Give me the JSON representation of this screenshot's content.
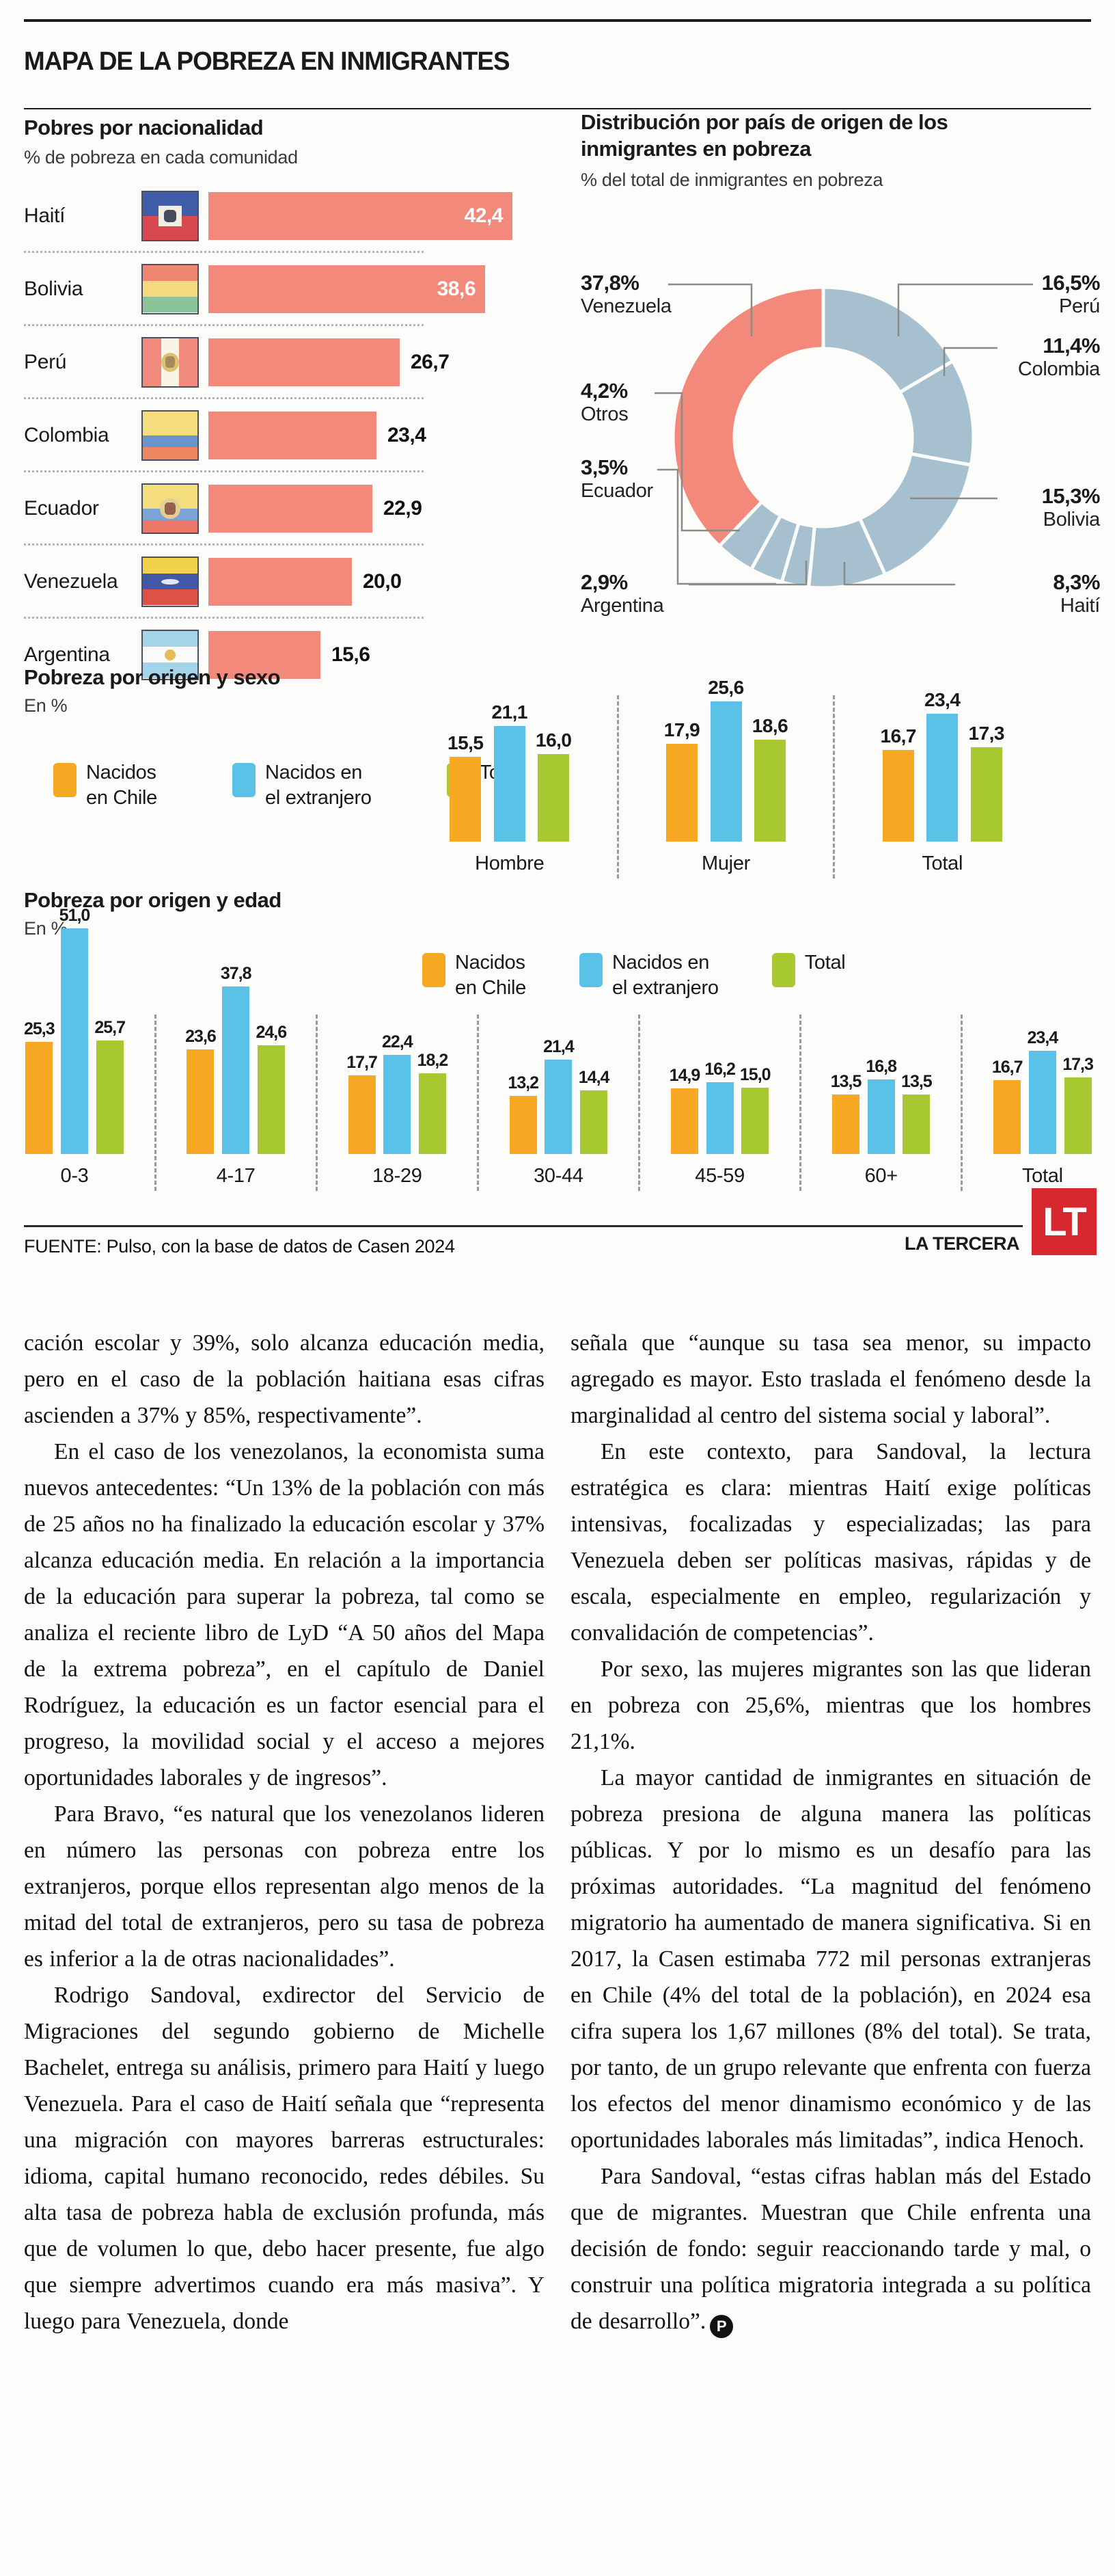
{
  "page": {
    "title_bar": "MAPA DE LA POBREZA EN INMIGRANTES"
  },
  "colors": {
    "coral": "#f2897b",
    "donut_base": "#a6c0d0",
    "born_chile": "#f7a823",
    "born_abroad": "#5bc2e7",
    "total_series": "#a8c832",
    "brand_red": "#d7282f"
  },
  "chart_data": [
    {
      "id": "nationality",
      "type": "bar",
      "orientation": "horizontal",
      "title": "Pobres por nacionalidad",
      "subtitle": "% de pobreza en cada comunidad",
      "bar_color": "#f2897b",
      "categories": [
        "Haití",
        "Bolivia",
        "Perú",
        "Colombia",
        "Ecuador",
        "Venezuela",
        "Argentina"
      ],
      "values": [
        42.4,
        38.6,
        26.7,
        23.4,
        22.9,
        20.0,
        15.6
      ],
      "value_labels": [
        "42,4",
        "38,6",
        "26,7",
        "23,4",
        "22,9",
        "20,0",
        "15,6"
      ],
      "label_inside": [
        true,
        true,
        false,
        false,
        false,
        false,
        false
      ],
      "flags": [
        {
          "name": "haiti",
          "dir": "col",
          "stripes": [
            [
              "#3f5da8",
              1
            ],
            [
              "#d8494f",
              1
            ]
          ],
          "emblem": {
            "w": 34,
            "h": 30,
            "bg": "#f2eee0",
            "dot": "#454d5c"
          }
        },
        {
          "name": "bolivia",
          "dir": "col",
          "stripes": [
            [
              "#ef8672",
              1
            ],
            [
              "#f4d97e",
              1
            ],
            [
              "#8cc49a",
              1
            ]
          ]
        },
        {
          "name": "peru",
          "dir": "row",
          "stripes": [
            [
              "#ef8a7c",
              1
            ],
            [
              "#faf4e6",
              1
            ],
            [
              "#ef8a7c",
              1
            ]
          ],
          "emblem": {
            "w": 26,
            "h": 28,
            "bg": "#dcc270",
            "dot": "#a8895a",
            "round": true
          }
        },
        {
          "name": "colombia",
          "dir": "col",
          "stripes": [
            [
              "#f5dd7d",
              2
            ],
            [
              "#6a94cc",
              1
            ],
            [
              "#ec8560",
              1
            ]
          ]
        },
        {
          "name": "ecuador",
          "dir": "col",
          "stripes": [
            [
              "#f5dd7d",
              2
            ],
            [
              "#7da3d4",
              1
            ],
            [
              "#ec7668",
              1
            ]
          ],
          "emblem": {
            "w": 30,
            "h": 30,
            "bg": "#e3cf96",
            "dot": "#97604e",
            "round": true
          }
        },
        {
          "name": "venezuela",
          "dir": "col",
          "stripes": [
            [
              "#f2d24b",
              1
            ],
            [
              "#4257a6",
              1
            ],
            [
              "#dd5146",
              1
            ]
          ],
          "emblem": {
            "w": 26,
            "h": 8,
            "bg": "#dfe8f7",
            "round": true
          }
        },
        {
          "name": "argentina",
          "dir": "col",
          "stripes": [
            [
              "#a3d4ea",
              1
            ],
            [
              "#fbfbf9",
              1
            ],
            [
              "#a3d4ea",
              1
            ]
          ],
          "emblem": {
            "w": 16,
            "h": 16,
            "bg": "#e5bd55",
            "round": true
          }
        }
      ]
    },
    {
      "id": "origin_share",
      "type": "pie",
      "title": "Distribución por país de origen de los inmigrantes en pobreza",
      "title_lines": [
        "Distribución por país de origen de los",
        "inmigrantes en pobreza"
      ],
      "subtitle": "% del total de inmigrantes en pobreza",
      "highlight_color": "#f2897b",
      "base_color": "#a6c0d0",
      "slices": [
        {
          "name": "Perú",
          "pct": 16.5
        },
        {
          "name": "Colombia",
          "pct": 11.4
        },
        {
          "name": "Bolivia",
          "pct": 15.3
        },
        {
          "name": "Haití",
          "pct": 8.3
        },
        {
          "name": "Argentina",
          "pct": 2.9
        },
        {
          "name": "Ecuador",
          "pct": 3.5
        },
        {
          "name": "Otros",
          "pct": 4.2
        },
        {
          "name": "Venezuela",
          "pct": 37.8,
          "highlight": true
        }
      ],
      "callouts": [
        {
          "label": "37,8%",
          "name": "Venezuela"
        },
        {
          "label": "16,5%",
          "name": "Perú"
        },
        {
          "label": "4,2%",
          "name": "Otros"
        },
        {
          "label": "11,4%",
          "name": "Colombia"
        },
        {
          "label": "3,5%",
          "name": "Ecuador"
        },
        {
          "label": "15,3%",
          "name": "Bolivia"
        },
        {
          "label": "2,9%",
          "name": "Argentina"
        },
        {
          "label": "8,3%",
          "name": "Haití"
        }
      ]
    },
    {
      "id": "sex",
      "type": "grouped-bar",
      "title": "Pobreza por origen y sexo",
      "subtitle": "En %",
      "categories": [
        "Hombre",
        "Mujer",
        "Total"
      ],
      "legend": [
        {
          "lines": [
            "Nacidos",
            "en Chile"
          ]
        },
        {
          "lines": [
            "Nacidos en",
            "el extranjero"
          ]
        },
        {
          "lines": [
            "Total"
          ]
        }
      ],
      "series": [
        {
          "name": "Nacidos en Chile",
          "color": "#f7a823",
          "values": [
            15.5,
            17.9,
            16.7
          ],
          "labels": [
            "15,5",
            "17,9",
            "16,7"
          ]
        },
        {
          "name": "Nacidos en el extranjero",
          "color": "#5bc2e7",
          "values": [
            21.1,
            25.6,
            23.4
          ],
          "labels": [
            "21,1",
            "25,6",
            "23,4"
          ]
        },
        {
          "name": "Total",
          "color": "#a8c832",
          "values": [
            16.0,
            18.6,
            17.3
          ],
          "labels": [
            "16,0",
            "18,6",
            "17,3"
          ]
        }
      ]
    },
    {
      "id": "age",
      "type": "grouped-bar",
      "title": "Pobreza por origen y edad",
      "subtitle": "En %",
      "categories": [
        "0-3",
        "4-17",
        "18-29",
        "30-44",
        "45-59",
        "60+",
        "Total"
      ],
      "legend": [
        {
          "lines": [
            "Nacidos",
            "en Chile"
          ]
        },
        {
          "lines": [
            "Nacidos en",
            "el extranjero"
          ]
        },
        {
          "lines": [
            "Total"
          ]
        }
      ],
      "series": [
        {
          "name": "Nacidos en Chile",
          "color": "#f7a823",
          "values": [
            25.3,
            23.6,
            17.7,
            13.2,
            14.9,
            13.5,
            16.7
          ],
          "labels": [
            "25,3",
            "23,6",
            "17,7",
            "13,2",
            "14,9",
            "13,5",
            "16,7"
          ]
        },
        {
          "name": "Nacidos en el extranjero",
          "color": "#5bc2e7",
          "values": [
            51.0,
            37.8,
            22.4,
            21.4,
            16.2,
            16.8,
            23.4
          ],
          "labels": [
            "51,0",
            "37,8",
            "22,4",
            "21,4",
            "16,2",
            "16,8",
            "23,4"
          ]
        },
        {
          "name": "Total",
          "color": "#a8c832",
          "values": [
            25.7,
            24.6,
            18.2,
            14.4,
            15.0,
            13.5,
            17.3
          ],
          "labels": [
            "25,7",
            "24,6",
            "18,2",
            "14,4",
            "15,0",
            "13,5",
            "17,3"
          ]
        }
      ]
    }
  ],
  "footer": {
    "source": "FUENTE: Pulso, con la base de datos de Casen 2024",
    "brand": "LA TERCERA",
    "logo_text": "LT"
  },
  "article": {
    "end_mark": "P",
    "columns": [
      [
        {
          "text": "cación escolar y 39%, solo alcanza educación media, pero en el caso de la población haitiana esas cifras ascienden a 37% y 85%, respectivamente”.",
          "indent": false
        },
        {
          "text": "En el caso de los venezolanos, la economista suma nuevos antecedentes: “Un 13% de la población con más de 25 años no ha finalizado la educación escolar y 37% alcanza educación media. En relación a la importancia de la educación para superar la pobreza, tal como se analiza el reciente libro de LyD “A 50 años del Mapa de la extrema pobreza”, en el capítulo de Daniel Rodríguez, la educación es un factor esencial para el progreso, la movilidad social y el acceso a mejores oportunidades laborales y de ingresos”."
        },
        {
          "text": "Para Bravo, “es natural que los venezolanos lideren en número las personas con pobreza entre los extranjeros, porque ellos representan algo menos de la mitad del total de extranjeros, pero su tasa de pobreza es inferior a la de otras nacionalidades”."
        },
        {
          "text": "Rodrigo Sandoval, exdirector del Servicio de Migraciones del segundo gobierno de Michelle Bachelet, entrega su análisis, primero para Haití y luego Venezuela. Para el caso de Haití señala que “representa una migración con mayores barreras estructurales: idioma, capital humano reconocido, redes débiles. Su alta tasa de pobreza habla de exclusión profunda, más que de volumen lo que, debo hacer presente, fue algo que siempre advertimos cuando era más masiva”. Y luego para Venezuela, donde"
        }
      ],
      [
        {
          "text": "señala que “aunque su tasa sea menor, su impacto agregado es mayor. Esto traslada el fenómeno desde la marginalidad al centro del sistema social y laboral”.",
          "indent": false
        },
        {
          "text": "En este contexto, para Sandoval, la lectura estratégica es clara: mientras Haití exige políticas intensivas, focalizadas y especializadas; las para Venezuela deben ser políticas masivas, rápidas y de escala, especialmente en empleo, regularización y convalidación de competencias”."
        },
        {
          "text": "Por sexo, las mujeres migrantes son las que lideran en pobreza con 25,6%, mientras que los hombres 21,1%."
        },
        {
          "text": "La mayor cantidad de inmigrantes en situación de pobreza presiona de alguna manera las políticas públicas. Y por lo mismo es un desafío para las próximas autoridades. “La magnitud del fenómeno migratorio ha aumentado de manera significativa. Si en 2017, la Casen estimaba 772 mil personas extranjeras en Chile (4% del total de la población), en 2024 esa cifra supera los 1,67 millones (8% del total). Se trata, por tanto, de un grupo relevante que enfrenta con fuerza los efectos del menor dinamismo económico y de las oportunidades laborales más limitadas”, indica Henoch."
        },
        {
          "text": "Para Sandoval, “estas cifras hablan más del Estado que de migrantes. Muestran que Chile enfrenta una decisión de fondo: seguir reaccionando tarde y mal, o construir una política migratoria integrada a su política de desarrollo”.",
          "end": true
        }
      ]
    ]
  }
}
